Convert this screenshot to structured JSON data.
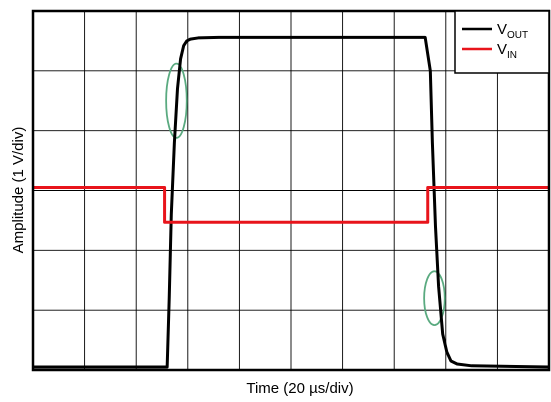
{
  "chart_data": {
    "type": "line",
    "title": "",
    "xlabel": "Time (20 µs/div)",
    "ylabel": "Amplitude (1 V/div)",
    "x_unit": "div",
    "y_unit": "div",
    "xlim": [
      0,
      10
    ],
    "ylim": [
      0,
      6
    ],
    "grid": true,
    "legend_position": "top-right",
    "series": [
      {
        "name": "VOUT",
        "legend_main": "V",
        "legend_sub": "OUT",
        "color": "#000000",
        "x": [
          0,
          2.6,
          2.64,
          2.68,
          2.74,
          2.8,
          2.86,
          2.92,
          2.98,
          3.05,
          3.2,
          3.6,
          7.6,
          7.7,
          7.74,
          7.8,
          7.86,
          7.94,
          8.02,
          8.1,
          8.22,
          8.5,
          10
        ],
        "y": [
          0.05,
          0.05,
          1.2,
          2.6,
          3.8,
          4.7,
          5.2,
          5.42,
          5.5,
          5.53,
          5.55,
          5.56,
          5.56,
          5.0,
          3.8,
          2.4,
          1.4,
          0.6,
          0.3,
          0.15,
          0.1,
          0.07,
          0.05
        ]
      },
      {
        "name": "VIN",
        "legend_main": "V",
        "legend_sub": "IN",
        "color": "#e8141b",
        "x": [
          0,
          2.55,
          2.55,
          7.65,
          7.65,
          10
        ],
        "y": [
          3.05,
          3.05,
          2.47,
          2.47,
          3.05,
          3.05
        ]
      }
    ],
    "annotations": [
      {
        "type": "ellipse",
        "color": "#5aaa80",
        "cx": 2.78,
        "cy": 4.5,
        "rx": 0.2,
        "ry": 0.62
      },
      {
        "type": "ellipse",
        "color": "#5aaa80",
        "cx": 7.78,
        "cy": 1.2,
        "rx": 0.2,
        "ry": 0.45
      }
    ]
  }
}
